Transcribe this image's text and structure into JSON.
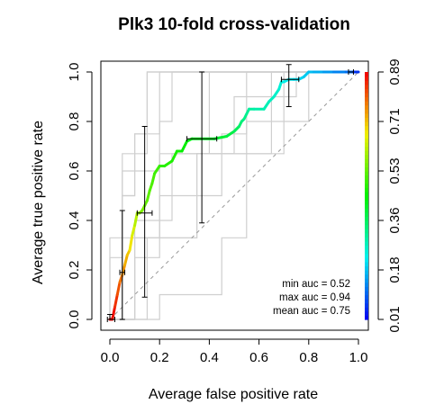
{
  "chart_data": {
    "type": "line",
    "title": "Plk3 10-fold cross-validation",
    "xlabel": "Average false positive rate",
    "ylabel": "Average true positive rate",
    "xlim": [
      0,
      1
    ],
    "ylim": [
      0,
      1
    ],
    "xticks": [
      "0.0",
      "0.2",
      "0.4",
      "0.6",
      "0.8",
      "1.0"
    ],
    "yticks": [
      "0.0",
      "0.2",
      "0.4",
      "0.6",
      "0.8",
      "1.0"
    ],
    "colorbar": {
      "ticks": [
        "0.01",
        "0.18",
        "0.36",
        "0.53",
        "0.71",
        "0.89"
      ],
      "range": [
        0.01,
        0.89
      ]
    },
    "annotations": [
      "min auc = 0.52",
      "max auc = 0.94",
      "mean auc = 0.75"
    ],
    "reference_line": {
      "x": [
        0,
        1
      ],
      "y": [
        0,
        1
      ],
      "style": "dashed",
      "color": "#999999"
    },
    "average_curve": {
      "x": [
        0.0,
        0.01,
        0.02,
        0.03,
        0.04,
        0.05,
        0.06,
        0.07,
        0.08,
        0.09,
        0.1,
        0.11,
        0.12,
        0.13,
        0.14,
        0.15,
        0.16,
        0.17,
        0.18,
        0.2,
        0.22,
        0.25,
        0.27,
        0.29,
        0.31,
        0.33,
        0.37,
        0.42,
        0.47,
        0.5,
        0.52,
        0.53,
        0.54,
        0.55,
        0.56,
        0.58,
        0.62,
        0.64,
        0.66,
        0.68,
        0.69,
        0.7,
        0.72,
        0.74,
        0.76,
        0.78,
        0.8,
        0.82,
        0.86,
        0.9,
        0.95,
        0.98,
        1.0
      ],
      "y": [
        0.0,
        0.0,
        0.05,
        0.1,
        0.15,
        0.18,
        0.22,
        0.26,
        0.28,
        0.34,
        0.38,
        0.43,
        0.43,
        0.44,
        0.46,
        0.48,
        0.52,
        0.55,
        0.59,
        0.62,
        0.62,
        0.64,
        0.68,
        0.68,
        0.72,
        0.73,
        0.73,
        0.73,
        0.74,
        0.76,
        0.78,
        0.8,
        0.81,
        0.83,
        0.85,
        0.85,
        0.85,
        0.88,
        0.9,
        0.93,
        0.96,
        0.96,
        0.97,
        0.97,
        0.97,
        0.98,
        1.0,
        1.0,
        1.0,
        1.0,
        1.0,
        1.0,
        1.0
      ],
      "cutoff": [
        0.89,
        0.89,
        0.86,
        0.83,
        0.8,
        0.77,
        0.74,
        0.72,
        0.7,
        0.66,
        0.63,
        0.6,
        0.58,
        0.57,
        0.55,
        0.54,
        0.53,
        0.52,
        0.51,
        0.5,
        0.49,
        0.48,
        0.47,
        0.46,
        0.44,
        0.43,
        0.42,
        0.41,
        0.4,
        0.38,
        0.36,
        0.34,
        0.33,
        0.32,
        0.31,
        0.3,
        0.29,
        0.28,
        0.27,
        0.26,
        0.25,
        0.24,
        0.23,
        0.22,
        0.21,
        0.2,
        0.19,
        0.18,
        0.16,
        0.14,
        0.12,
        0.1,
        0.01
      ]
    },
    "error_bars": [
      {
        "x": 0.0,
        "y": 0.0,
        "y_low": 0.0,
        "y_high": 0.02,
        "x_low": -0.01,
        "x_high": 0.02
      },
      {
        "x": 0.05,
        "y": 0.19,
        "y_low": 0.0,
        "y_high": 0.44,
        "x_low": 0.04,
        "x_high": 0.06
      },
      {
        "x": 0.14,
        "y": 0.43,
        "y_low": 0.09,
        "y_high": 0.78,
        "x_low": 0.11,
        "x_high": 0.17
      },
      {
        "x": 0.37,
        "y": 0.73,
        "y_low": 0.39,
        "y_high": 1.0,
        "x_low": 0.31,
        "x_high": 0.43
      },
      {
        "x": 0.72,
        "y": 0.97,
        "y_low": 0.86,
        "y_high": 1.03,
        "x_low": 0.69,
        "x_high": 0.76
      },
      {
        "x": 0.97,
        "y": 1.0,
        "y_low": 1.0,
        "y_high": 1.0,
        "x_low": 0.96,
        "x_high": 0.98
      }
    ],
    "fold_curves": [
      {
        "x": [
          0,
          0,
          0.05,
          0.05,
          0.15,
          0.15,
          0.3,
          0.3,
          1
        ],
        "y": [
          0,
          0.33,
          0.33,
          0.67,
          0.67,
          1,
          1,
          1,
          1
        ]
      },
      {
        "x": [
          0,
          0.05,
          0.05,
          0.1,
          0.1,
          0.2,
          0.2,
          1
        ],
        "y": [
          0,
          0,
          0.5,
          0.5,
          0.75,
          0.75,
          1,
          1
        ]
      },
      {
        "x": [
          0,
          0.1,
          0.1,
          0.2,
          0.2,
          0.45,
          0.45,
          0.55,
          0.55,
          1
        ],
        "y": [
          0,
          0,
          0.25,
          0.25,
          0.5,
          0.5,
          0.75,
          0.75,
          1,
          1
        ]
      },
      {
        "x": [
          0,
          0.15,
          0.15,
          0.35,
          0.35,
          0.5,
          0.5,
          0.7,
          0.7,
          1
        ],
        "y": [
          0,
          0,
          0.33,
          0.33,
          0.67,
          0.67,
          0.67,
          0.67,
          1,
          1
        ]
      },
      {
        "x": [
          0,
          0.05,
          0.05,
          0.2,
          0.2,
          0.25,
          0.25,
          1
        ],
        "y": [
          0,
          0,
          0.6,
          0.6,
          0.8,
          0.8,
          1,
          1
        ]
      },
      {
        "x": [
          0,
          0.1,
          0.1,
          0.25,
          0.25,
          0.55,
          0.55,
          0.8,
          0.8,
          1
        ],
        "y": [
          0,
          0,
          0.4,
          0.4,
          0.67,
          0.67,
          0.8,
          0.8,
          1,
          1
        ]
      },
      {
        "x": [
          0,
          0.0,
          0.05,
          0.05,
          0.1,
          0.1,
          0.15,
          0.15,
          1
        ],
        "y": [
          0,
          0.25,
          0.25,
          0.5,
          0.5,
          0.75,
          0.75,
          1,
          1
        ]
      },
      {
        "x": [
          0,
          0.2,
          0.2,
          0.45,
          0.45,
          0.55,
          0.55,
          0.65,
          0.65,
          1
        ],
        "y": [
          0,
          0,
          0.1,
          0.1,
          0.33,
          0.33,
          0.67,
          0.67,
          1,
          1
        ]
      },
      {
        "x": [
          0,
          0.05,
          0.05,
          0.35,
          0.35,
          0.5,
          0.5,
          0.75,
          0.75,
          1
        ],
        "y": [
          0,
          0,
          0.33,
          0.33,
          0.67,
          0.67,
          0.9,
          0.9,
          1,
          1
        ]
      },
      {
        "x": [
          0,
          0.1,
          0.1,
          0.2,
          0.2,
          0.4,
          0.4,
          1
        ],
        "y": [
          0,
          0,
          0.33,
          0.33,
          0.67,
          0.67,
          1,
          1
        ]
      }
    ]
  }
}
